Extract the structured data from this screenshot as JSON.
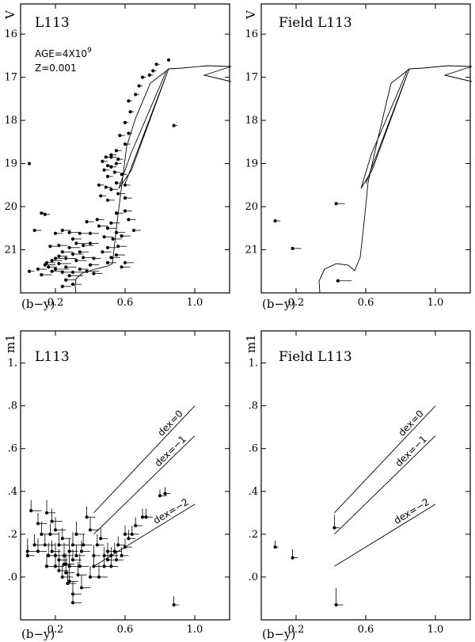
{
  "chart_data": [
    {
      "type": "scatter",
      "panel": "cmd",
      "title": "L113",
      "annotation_lines": [
        "AGE=4X10",
        "Z=0.001"
      ],
      "annotation_exponent": "9",
      "xlabel": "(b−y)",
      "ylabel": "V",
      "xlim": [
        0.0,
        1.2
      ],
      "ylim": [
        22.0,
        15.3
      ],
      "xticks": [
        "0.2",
        "0.6",
        "1.0"
      ],
      "yticks": [
        "16",
        "17",
        "18",
        "19",
        "20",
        "21"
      ],
      "points": [
        [
          0.05,
          19.0,
          0
        ],
        [
          0.85,
          16.6,
          0
        ],
        [
          0.88,
          18.12,
          0.02
        ],
        [
          0.05,
          21.5,
          0.03
        ],
        [
          0.08,
          20.55,
          0.04
        ],
        [
          0.12,
          20.15,
          0.02
        ],
        [
          0.14,
          20.18,
          0.03
        ],
        [
          0.17,
          20.92,
          0.04
        ],
        [
          0.2,
          21.2,
          0.05
        ],
        [
          0.22,
          20.9,
          0.05
        ],
        [
          0.24,
          21.05,
          0.06
        ],
        [
          0.1,
          21.45,
          0.05
        ],
        [
          0.14,
          21.35,
          0.06
        ],
        [
          0.18,
          21.5,
          0.07
        ],
        [
          0.2,
          21.45,
          0.08
        ],
        [
          0.22,
          21.32,
          0.07
        ],
        [
          0.24,
          21.52,
          0.06
        ],
        [
          0.26,
          21.4,
          0.06
        ],
        [
          0.28,
          21.6,
          0.08
        ],
        [
          0.3,
          21.52,
          0.07
        ],
        [
          0.32,
          21.25,
          0.06
        ],
        [
          0.34,
          21.45,
          0.05
        ],
        [
          0.36,
          21.18,
          0.06
        ],
        [
          0.38,
          21.5,
          0.07
        ],
        [
          0.26,
          21.7,
          0.06
        ],
        [
          0.24,
          21.85,
          0.05
        ],
        [
          0.3,
          21.8,
          0.05
        ],
        [
          0.18,
          21.25,
          0.06
        ],
        [
          0.22,
          21.15,
          0.05
        ],
        [
          0.26,
          21.2,
          0.06
        ],
        [
          0.3,
          21.1,
          0.06
        ],
        [
          0.34,
          21.05,
          0.05
        ],
        [
          0.28,
          20.95,
          0.06
        ],
        [
          0.32,
          20.85,
          0.07
        ],
        [
          0.36,
          20.9,
          0.06
        ],
        [
          0.4,
          20.85,
          0.05
        ],
        [
          0.28,
          20.6,
          0.06
        ],
        [
          0.3,
          20.75,
          0.05
        ],
        [
          0.34,
          20.62,
          0.05
        ],
        [
          0.2,
          20.62,
          0.04
        ],
        [
          0.24,
          20.55,
          0.05
        ],
        [
          0.16,
          21.4,
          0.05
        ],
        [
          0.12,
          21.58,
          0.06
        ],
        [
          0.15,
          21.3,
          0.05
        ],
        [
          0.4,
          21.35,
          0.05
        ],
        [
          0.42,
          21.55,
          0.05
        ],
        [
          0.4,
          20.62,
          0.05
        ],
        [
          0.44,
          20.3,
          0.04
        ],
        [
          0.42,
          21.2,
          0.04
        ],
        [
          0.38,
          20.35,
          0.04
        ],
        [
          0.45,
          20.45,
          0.05
        ],
        [
          0.5,
          20.5,
          0.05
        ],
        [
          0.52,
          20.38,
          0.05
        ],
        [
          0.55,
          20.6,
          0.05
        ],
        [
          0.48,
          20.7,
          0.05
        ],
        [
          0.53,
          20.75,
          0.05
        ],
        [
          0.58,
          20.68,
          0.05
        ],
        [
          0.56,
          20.92,
          0.05
        ],
        [
          0.5,
          20.95,
          0.05
        ],
        [
          0.47,
          21.05,
          0.05
        ],
        [
          0.52,
          21.18,
          0.05
        ],
        [
          0.55,
          21.12,
          0.05
        ],
        [
          0.6,
          21.3,
          0.05
        ],
        [
          0.58,
          21.4,
          0.05
        ],
        [
          0.5,
          21.3,
          0.05
        ],
        [
          0.62,
          20.3,
          0.04
        ],
        [
          0.65,
          20.55,
          0.04
        ],
        [
          0.6,
          20.1,
          0.04
        ],
        [
          0.55,
          20.15,
          0.04
        ],
        [
          0.6,
          19.8,
          0.04
        ],
        [
          0.56,
          19.7,
          0.04
        ],
        [
          0.5,
          19.85,
          0.04
        ],
        [
          0.52,
          19.6,
          0.04
        ],
        [
          0.55,
          19.45,
          0.03
        ],
        [
          0.5,
          19.3,
          0.03
        ],
        [
          0.48,
          19.15,
          0.03
        ],
        [
          0.5,
          19.05,
          0.03
        ],
        [
          0.52,
          19.08,
          0.03
        ],
        [
          0.55,
          19.0,
          0.03
        ],
        [
          0.47,
          18.95,
          0.03
        ],
        [
          0.52,
          18.85,
          0.03
        ],
        [
          0.56,
          18.9,
          0.03
        ],
        [
          0.54,
          19.2,
          0.03
        ],
        [
          0.58,
          19.25,
          0.03
        ],
        [
          0.6,
          19.5,
          0.03
        ],
        [
          0.49,
          19.55,
          0.03
        ],
        [
          0.46,
          19.75,
          0.03
        ],
        [
          0.55,
          18.7,
          0.03
        ],
        [
          0.6,
          18.55,
          0.03
        ],
        [
          0.57,
          18.35,
          0.03
        ],
        [
          0.62,
          18.3,
          0.02
        ],
        [
          0.6,
          18.05,
          0.02
        ],
        [
          0.63,
          17.8,
          0.02
        ],
        [
          0.62,
          17.55,
          0.02
        ],
        [
          0.66,
          17.4,
          0.02
        ],
        [
          0.68,
          17.2,
          0.02
        ],
        [
          0.7,
          17.0,
          0.02
        ],
        [
          0.74,
          16.95,
          0.02
        ],
        [
          0.76,
          16.85,
          0.02
        ],
        [
          0.78,
          16.7,
          0.02
        ],
        [
          0.52,
          18.8,
          0.03
        ],
        [
          0.49,
          18.85,
          0.03
        ],
        [
          0.45,
          19.5,
          0.03
        ]
      ]
    },
    {
      "type": "scatter",
      "panel": "cmd",
      "title": "Field L113",
      "xlabel": "(b−y)",
      "ylabel": "V",
      "xlim": [
        0.0,
        1.2
      ],
      "ylim": [
        22.0,
        15.3
      ],
      "xticks": [
        "0.2",
        "0.6",
        "1.0"
      ],
      "yticks": [
        "16",
        "17",
        "18",
        "19",
        "20",
        "21"
      ],
      "points": [
        [
          0.08,
          20.33,
          0.03
        ],
        [
          0.43,
          19.93,
          0.05
        ],
        [
          0.18,
          20.97,
          0.05
        ],
        [
          0.44,
          21.72,
          0.08
        ]
      ]
    },
    {
      "type": "scatter",
      "panel": "color-color",
      "title": "L113",
      "xlabel": "(b−y)",
      "ylabel": "m1",
      "xlim": [
        0.0,
        1.2
      ],
      "ylim": [
        -0.2,
        1.15
      ],
      "xticks": [
        "0.2",
        "0.6",
        "1.0"
      ],
      "yticks": [
        "1.",
        ".8",
        ".6",
        ".4",
        ".2",
        ".0"
      ],
      "reference_lines": [
        {
          "label": "dex=0",
          "from": [
            0.42,
            0.3
          ],
          "to": [
            1.0,
            0.8
          ]
        },
        {
          "label": "dex=−1",
          "from": [
            0.42,
            0.2
          ],
          "to": [
            1.0,
            0.66
          ]
        },
        {
          "label": "dex=−2",
          "from": [
            0.42,
            0.05
          ],
          "to": [
            1.0,
            0.34
          ]
        }
      ],
      "points": [
        [
          0.04,
          0.1,
          0.04,
          0.05
        ],
        [
          0.04,
          0.12,
          0.06,
          0.06
        ],
        [
          0.06,
          0.31,
          0.06,
          0.05
        ],
        [
          0.1,
          0.25,
          0.05,
          0.05
        ],
        [
          0.12,
          0.2,
          0.06,
          0.06
        ],
        [
          0.08,
          0.15,
          0.05,
          0.05
        ],
        [
          0.1,
          0.12,
          0.05,
          0.06
        ],
        [
          0.14,
          0.15,
          0.06,
          0.05
        ],
        [
          0.15,
          0.3,
          0.05,
          0.06
        ],
        [
          0.18,
          0.26,
          0.06,
          0.06
        ],
        [
          0.17,
          0.2,
          0.05,
          0.05
        ],
        [
          0.2,
          0.22,
          0.06,
          0.06
        ],
        [
          0.16,
          0.1,
          0.05,
          0.06
        ],
        [
          0.18,
          0.12,
          0.05,
          0.05
        ],
        [
          0.2,
          0.1,
          0.05,
          0.06
        ],
        [
          0.22,
          0.15,
          0.06,
          0.06
        ],
        [
          0.24,
          0.18,
          0.05,
          0.05
        ],
        [
          0.25,
          0.1,
          0.05,
          0.06
        ],
        [
          0.2,
          0.05,
          0.05,
          0.06
        ],
        [
          0.22,
          0.03,
          0.05,
          0.05
        ],
        [
          0.24,
          0.0,
          0.06,
          0.06
        ],
        [
          0.26,
          0.02,
          0.05,
          0.06
        ],
        [
          0.26,
          0.06,
          0.05,
          0.05
        ],
        [
          0.28,
          0.05,
          0.05,
          0.06
        ],
        [
          0.28,
          0.12,
          0.05,
          0.06
        ],
        [
          0.3,
          0.08,
          0.05,
          0.05
        ],
        [
          0.3,
          0.15,
          0.06,
          0.06
        ],
        [
          0.32,
          0.1,
          0.05,
          0.05
        ],
        [
          0.32,
          0.2,
          0.05,
          0.06
        ],
        [
          0.34,
          0.05,
          0.05,
          0.06
        ],
        [
          0.36,
          0.15,
          0.05,
          0.05
        ],
        [
          0.38,
          0.28,
          0.05,
          0.05
        ],
        [
          0.4,
          0.22,
          0.05,
          0.06
        ],
        [
          0.42,
          0.1,
          0.04,
          0.05
        ],
        [
          0.44,
          0.15,
          0.04,
          0.05
        ],
        [
          0.46,
          0.18,
          0.04,
          0.05
        ],
        [
          0.48,
          0.1,
          0.04,
          0.04
        ],
        [
          0.5,
          0.12,
          0.04,
          0.04
        ],
        [
          0.5,
          0.08,
          0.04,
          0.04
        ],
        [
          0.52,
          0.1,
          0.04,
          0.04
        ],
        [
          0.54,
          0.12,
          0.04,
          0.04
        ],
        [
          0.55,
          0.08,
          0.04,
          0.04
        ],
        [
          0.56,
          0.15,
          0.04,
          0.04
        ],
        [
          0.58,
          0.1,
          0.04,
          0.04
        ],
        [
          0.6,
          0.14,
          0.04,
          0.04
        ],
        [
          0.6,
          0.2,
          0.04,
          0.04
        ],
        [
          0.62,
          0.18,
          0.04,
          0.04
        ],
        [
          0.64,
          0.2,
          0.04,
          0.04
        ],
        [
          0.66,
          0.24,
          0.04,
          0.04
        ],
        [
          0.7,
          0.28,
          0.04,
          0.04
        ],
        [
          0.72,
          0.28,
          0.04,
          0.04
        ],
        [
          0.8,
          0.38,
          0.04,
          0.03
        ],
        [
          0.83,
          0.39,
          0.03,
          0.03
        ],
        [
          0.88,
          -0.13,
          0.03,
          0.04
        ],
        [
          0.52,
          0.05,
          0.04,
          0.05
        ],
        [
          0.48,
          0.05,
          0.04,
          0.05
        ],
        [
          0.45,
          0.0,
          0.05,
          0.06
        ],
        [
          0.35,
          -0.05,
          0.05,
          0.06
        ],
        [
          0.3,
          -0.08,
          0.05,
          0.06
        ],
        [
          0.28,
          -0.02,
          0.05,
          0.06
        ],
        [
          0.3,
          -0.12,
          0.05,
          0.06
        ],
        [
          0.27,
          -0.03,
          0.05,
          0.06
        ],
        [
          0.33,
          0.01,
          0.05,
          0.06
        ],
        [
          0.25,
          0.06,
          0.05,
          0.05
        ],
        [
          0.22,
          0.08,
          0.05,
          0.05
        ],
        [
          0.15,
          0.05,
          0.05,
          0.06
        ],
        [
          0.35,
          0.12,
          0.05,
          0.05
        ],
        [
          0.4,
          0.0,
          0.05,
          0.05
        ],
        [
          0.42,
          0.05,
          0.05,
          0.05
        ]
      ]
    },
    {
      "type": "scatter",
      "panel": "color-color",
      "title": "Field L113",
      "xlabel": "(b−y)",
      "ylabel": "m1",
      "xlim": [
        0.0,
        1.2
      ],
      "ylim": [
        -0.2,
        1.15
      ],
      "xticks": [
        "0.2",
        "0.6",
        "1.0"
      ],
      "yticks": [
        "1.",
        ".8",
        ".6",
        ".4",
        ".2",
        ".0"
      ],
      "reference_lines": [
        {
          "label": "dex=0",
          "from": [
            0.42,
            0.3
          ],
          "to": [
            1.0,
            0.8
          ]
        },
        {
          "label": "dex=−1",
          "from": [
            0.42,
            0.2
          ],
          "to": [
            1.0,
            0.66
          ]
        },
        {
          "label": "dex=−2",
          "from": [
            0.42,
            0.05
          ],
          "to": [
            1.0,
            0.34
          ]
        }
      ],
      "points": [
        [
          0.08,
          0.14,
          0.02,
          0.03
        ],
        [
          0.18,
          0.09,
          0.03,
          0.04
        ],
        [
          0.42,
          0.23,
          0.03,
          0.06
        ],
        [
          0.43,
          -0.13,
          0.04,
          0.08
        ]
      ]
    }
  ]
}
